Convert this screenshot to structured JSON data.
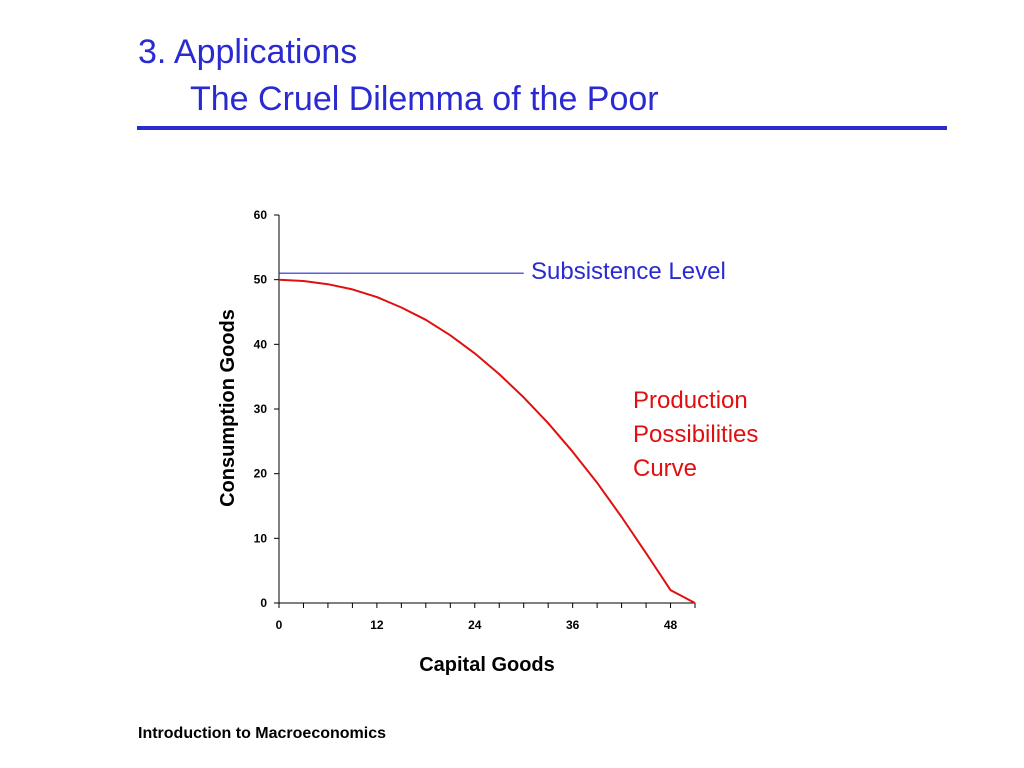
{
  "slide": {
    "title_line1": "3. Applications",
    "title_line2": "The Cruel Dilemma of the Poor",
    "footer": "Introduction to Macroeconomics",
    "accent_color": "#2a2ad0"
  },
  "chart_data": {
    "type": "line",
    "title": "",
    "xlabel": "Capital Goods",
    "ylabel": "Consumption Goods",
    "xlim": [
      0,
      51
    ],
    "ylim": [
      0,
      60
    ],
    "x_ticks": [
      0,
      12,
      24,
      36,
      48
    ],
    "y_ticks": [
      0,
      10,
      20,
      30,
      40,
      50,
      60
    ],
    "grid": false,
    "series": [
      {
        "name": "Subsistence Level",
        "color": "#2a2ad0",
        "x": [
          0,
          30
        ],
        "y": [
          51,
          51
        ]
      },
      {
        "name": "Production Possibilities Curve",
        "color": "#e01010",
        "x": [
          0,
          3,
          6,
          9,
          12,
          15,
          18,
          21,
          24,
          27,
          30,
          33,
          36,
          39,
          42,
          45,
          48,
          51
        ],
        "y": [
          50,
          49.8,
          49.3,
          48.5,
          47.3,
          45.7,
          43.8,
          41.4,
          38.6,
          35.4,
          31.8,
          27.8,
          23.4,
          18.6,
          13.3,
          7.7,
          2.0,
          0
        ]
      }
    ],
    "annotations": [
      {
        "text": "Subsistence Level",
        "color": "#2a2ad0"
      },
      {
        "text": "Production",
        "color": "#e01010"
      },
      {
        "text": "Possibilities",
        "color": "#e01010"
      },
      {
        "text": "Curve",
        "color": "#e01010"
      }
    ]
  }
}
